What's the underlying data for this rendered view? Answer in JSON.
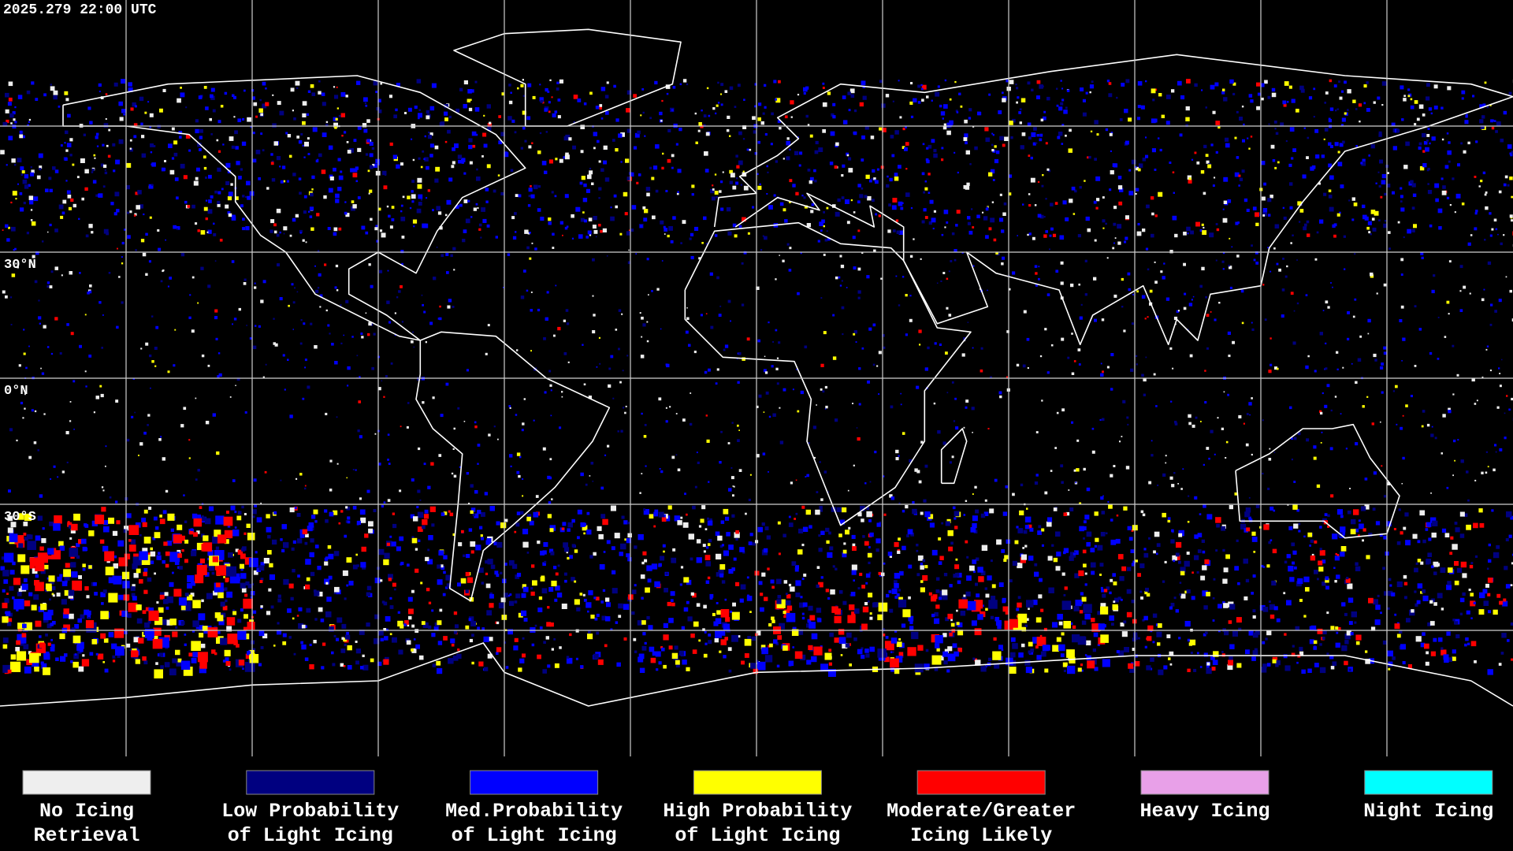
{
  "timestamp": "2025.279 22:00 UTC",
  "latitude_labels": [
    "30°N",
    "0°N",
    "30°S"
  ],
  "legend": [
    {
      "lines": [
        "No Icing",
        "Retrieval"
      ],
      "color": "#eeeeee"
    },
    {
      "lines": [
        "Low Probability",
        "of Light Icing"
      ],
      "color": "#000080"
    },
    {
      "lines": [
        "Med.Probability",
        "of Light Icing"
      ],
      "color": "#0000ff"
    },
    {
      "lines": [
        "High Probability",
        "of Light Icing"
      ],
      "color": "#ffff00"
    },
    {
      "lines": [
        "Moderate/Greater",
        "Icing Likely"
      ],
      "color": "#ff0000"
    },
    {
      "lines": [
        "Heavy Icing"
      ],
      "color": "#e8a0e8"
    },
    {
      "lines": [
        "Night Icing"
      ],
      "color": "#00ffff"
    }
  ]
}
